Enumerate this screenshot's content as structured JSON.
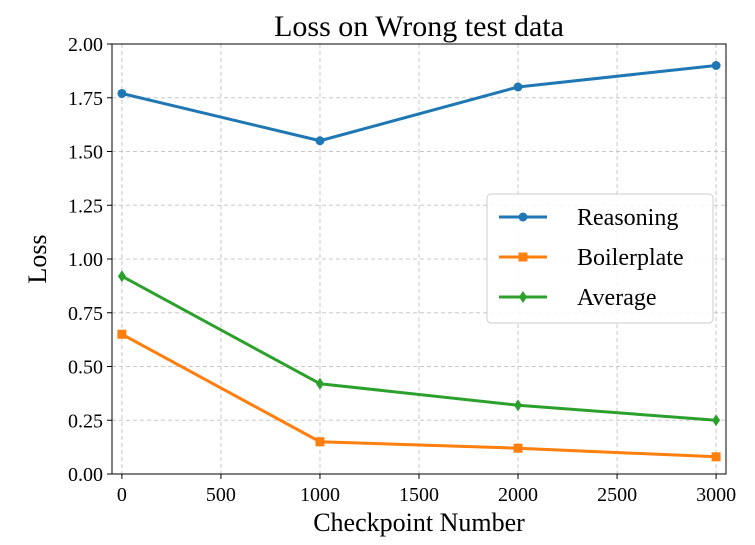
{
  "chart_data": {
    "type": "line",
    "title": "Loss on Wrong test data",
    "xlabel": "Checkpoint Number",
    "ylabel": "Loss",
    "x": [
      0,
      1000,
      2000,
      3000
    ],
    "xlim": [
      -50,
      3050
    ],
    "ylim": [
      0,
      2
    ],
    "xticks": [
      0,
      500,
      1000,
      1500,
      2000,
      2500,
      3000
    ],
    "yticks": [
      "0.00",
      "0.25",
      "0.50",
      "0.75",
      "1.00",
      "1.25",
      "1.50",
      "1.75",
      "2.00"
    ],
    "grid": true,
    "legend_position": "center-right",
    "series": [
      {
        "name": "Reasoning",
        "color": "#1f77b4",
        "marker": "circle",
        "values": [
          1.77,
          1.55,
          1.8,
          1.9
        ]
      },
      {
        "name": "Boilerplate",
        "color": "#ff7f0e",
        "marker": "square",
        "values": [
          0.65,
          0.15,
          0.12,
          0.08
        ]
      },
      {
        "name": "Average",
        "color": "#2ca02c",
        "marker": "diamond",
        "values": [
          0.92,
          0.42,
          0.32,
          0.25
        ]
      }
    ]
  }
}
